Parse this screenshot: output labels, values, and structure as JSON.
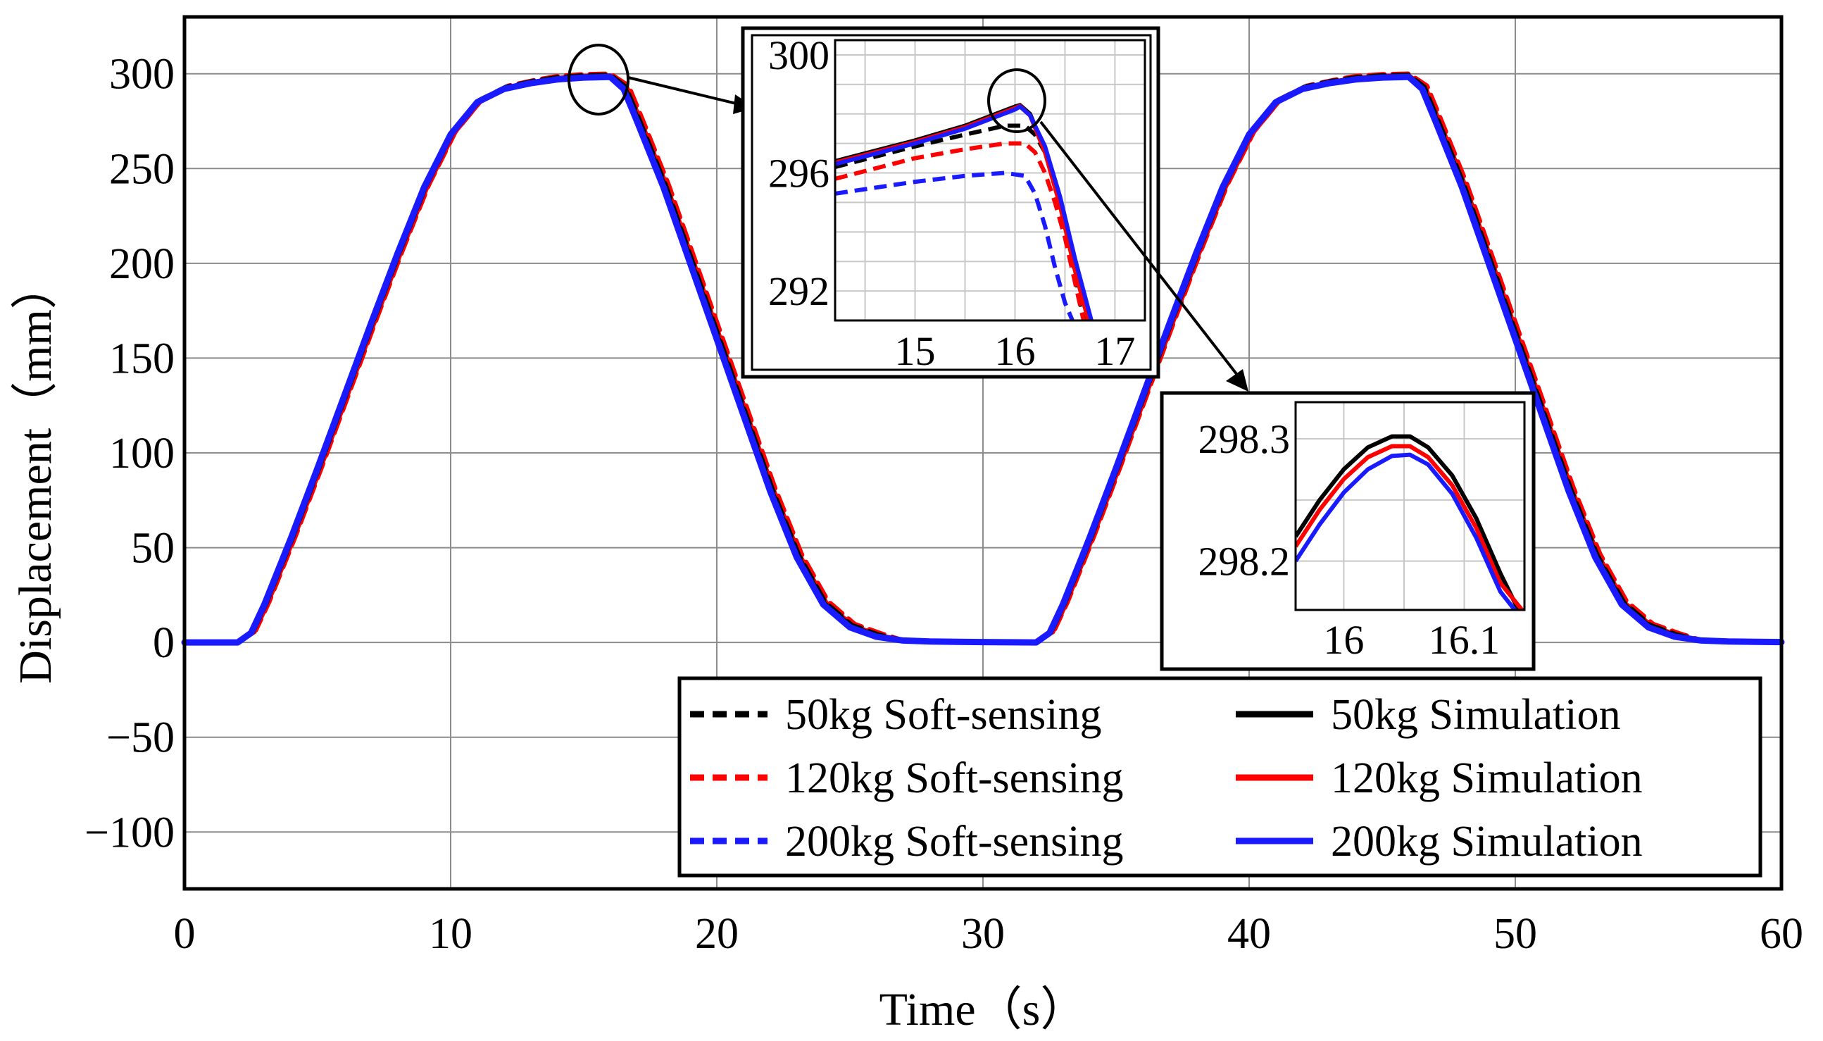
{
  "chart_data": {
    "type": "line",
    "xlabel": "Time（s）",
    "ylabel": "Displacement（mm）",
    "xlim": [
      0,
      60
    ],
    "ylim": [
      -130,
      330
    ],
    "xticks": [
      "0",
      "10",
      "20",
      "30",
      "40",
      "50",
      "60"
    ],
    "yticks": [
      "300",
      "250",
      "200",
      "150",
      "100",
      "50",
      "0",
      "−50",
      "−100"
    ],
    "grid": true,
    "legend_position": "bottom-right",
    "colors": {
      "black": "#000000",
      "red": "#ff0000",
      "blue": "#1a1aff"
    },
    "series": [
      {
        "name": "50kg Soft-sensing",
        "color": "#000000",
        "style": "dashed"
      },
      {
        "name": "120kg Soft-sensing",
        "color": "#ff0000",
        "style": "dashed"
      },
      {
        "name": "200kg Soft-sensing",
        "color": "#1a1aff",
        "style": "dashed"
      },
      {
        "name": "50kg Simulation",
        "color": "#000000",
        "style": "solid"
      },
      {
        "name": "120kg Simulation",
        "color": "#ff0000",
        "style": "solid"
      },
      {
        "name": "200kg Simulation",
        "color": "#1a1aff",
        "style": "solid"
      }
    ],
    "main_curve": {
      "x": [
        0,
        2,
        2.5,
        3,
        4,
        5,
        6,
        7,
        8,
        9,
        10,
        11,
        12,
        13,
        14,
        15,
        16,
        16.5,
        17,
        18,
        19,
        20,
        21,
        22,
        23,
        24,
        25,
        26,
        27,
        28,
        29,
        30,
        31,
        32,
        32.5,
        33,
        34,
        35,
        36,
        37,
        38,
        39,
        40,
        41,
        42,
        43,
        44,
        45,
        46,
        46.5,
        47,
        48,
        49,
        50,
        51,
        52,
        53,
        54,
        55,
        56,
        57,
        58,
        59,
        60
      ],
      "y": [
        0,
        0,
        5,
        20,
        55,
        92,
        130,
        168,
        205,
        240,
        268,
        285,
        292,
        295,
        297,
        298,
        298.3,
        292,
        275,
        240,
        200,
        160,
        120,
        80,
        45,
        20,
        8,
        3,
        1,
        0.5,
        0.3,
        0.2,
        0.1,
        0,
        5,
        20,
        55,
        92,
        130,
        168,
        205,
        240,
        268,
        285,
        292,
        295,
        297,
        298,
        298.3,
        292,
        275,
        240,
        200,
        160,
        120,
        80,
        45,
        20,
        8,
        3,
        1,
        0.5,
        0.3,
        0.2
      ]
    },
    "insets": [
      {
        "xlim": [
          14.2,
          17.3
        ],
        "ylim": [
          291,
          300.5
        ],
        "xticks": [
          "15",
          "16",
          "17"
        ],
        "yticks": [
          "300",
          "296",
          "292"
        ],
        "series": [
          {
            "name": "50kg Soft-sensing",
            "color": "#000000",
            "style": "dashed",
            "x": [
              14.2,
              15,
              15.5,
              15.9,
              16.1,
              16.2,
              16.3,
              16.4,
              16.5,
              16.6,
              16.7
            ],
            "y": [
              296.2,
              296.9,
              297.3,
              297.6,
              297.6,
              297.3,
              296.7,
              295.6,
              294.3,
              292.6,
              290.8
            ]
          },
          {
            "name": "120kg Soft-sensing",
            "color": "#ff0000",
            "style": "dashed",
            "x": [
              14.2,
              15,
              15.5,
              15.9,
              16.1,
              16.2,
              16.3,
              16.4,
              16.5,
              16.6,
              16.7
            ],
            "y": [
              295.8,
              296.5,
              296.8,
              297.0,
              297.0,
              296.7,
              296.0,
              295.0,
              293.8,
              292.3,
              290.8
            ]
          },
          {
            "name": "200kg Soft-sensing",
            "color": "#1a1aff",
            "style": "dashed",
            "x": [
              14.2,
              15,
              15.5,
              15.9,
              16.1,
              16.2,
              16.3,
              16.4,
              16.5,
              16.6
            ],
            "y": [
              295.3,
              295.7,
              295.9,
              296.0,
              295.9,
              295.3,
              294.2,
              292.8,
              291.6,
              290.8
            ]
          },
          {
            "name": "50kg Simulation",
            "color": "#000000",
            "style": "solid",
            "x": [
              14.2,
              15,
              15.5,
              16,
              16.05,
              16.15,
              16.3,
              16.45,
              16.6,
              16.75
            ],
            "y": [
              296.4,
              297.1,
              297.6,
              298.25,
              298.3,
              298.0,
              296.8,
              295.0,
              292.8,
              290.8
            ]
          },
          {
            "name": "120kg Simulation",
            "color": "#ff0000",
            "style": "solid",
            "x": [
              14.2,
              15,
              15.5,
              16,
              16.05,
              16.15,
              16.3,
              16.45,
              16.6,
              16.75
            ],
            "y": [
              296.35,
              297.05,
              297.55,
              298.2,
              298.27,
              297.95,
              296.7,
              294.9,
              292.7,
              290.8
            ]
          },
          {
            "name": "200kg Simulation",
            "color": "#1a1aff",
            "style": "solid",
            "x": [
              14.2,
              15,
              15.5,
              16,
              16.05,
              16.15,
              16.3,
              16.45,
              16.6,
              16.78
            ],
            "y": [
              296.3,
              297.0,
              297.5,
              298.15,
              298.25,
              297.95,
              296.9,
              295.2,
              293.1,
              290.8
            ]
          }
        ]
      },
      {
        "xlim": [
          15.96,
          16.15
        ],
        "ylim": [
          298.16,
          298.33
        ],
        "xticks": [
          "16",
          "16.1"
        ],
        "yticks": [
          "298.3",
          "298.2"
        ],
        "series": [
          {
            "name": "50kg Simulation",
            "color": "#000000",
            "style": "solid",
            "x": [
              15.96,
              15.98,
              16.0,
              16.02,
              16.04,
              16.055,
              16.07,
              16.09,
              16.11,
              16.13,
              16.145
            ],
            "y": [
              298.22,
              298.25,
              298.275,
              298.293,
              298.302,
              298.302,
              298.293,
              298.27,
              298.235,
              298.19,
              298.16
            ]
          },
          {
            "name": "120kg Simulation",
            "color": "#ff0000",
            "style": "solid",
            "x": [
              15.96,
              15.98,
              16.0,
              16.02,
              16.04,
              16.055,
              16.07,
              16.09,
              16.11,
              16.13,
              16.148
            ],
            "y": [
              298.212,
              298.242,
              298.267,
              298.285,
              298.294,
              298.294,
              298.285,
              298.262,
              298.227,
              298.182,
              298.16
            ]
          },
          {
            "name": "200kg Simulation",
            "color": "#1a1aff",
            "style": "solid",
            "x": [
              15.96,
              15.98,
              16.0,
              16.02,
              16.04,
              16.055,
              16.07,
              16.09,
              16.11,
              16.13,
              16.142
            ],
            "y": [
              298.2,
              298.23,
              298.256,
              298.275,
              298.286,
              298.287,
              298.279,
              298.255,
              298.219,
              298.175,
              298.16
            ]
          }
        ]
      }
    ]
  }
}
